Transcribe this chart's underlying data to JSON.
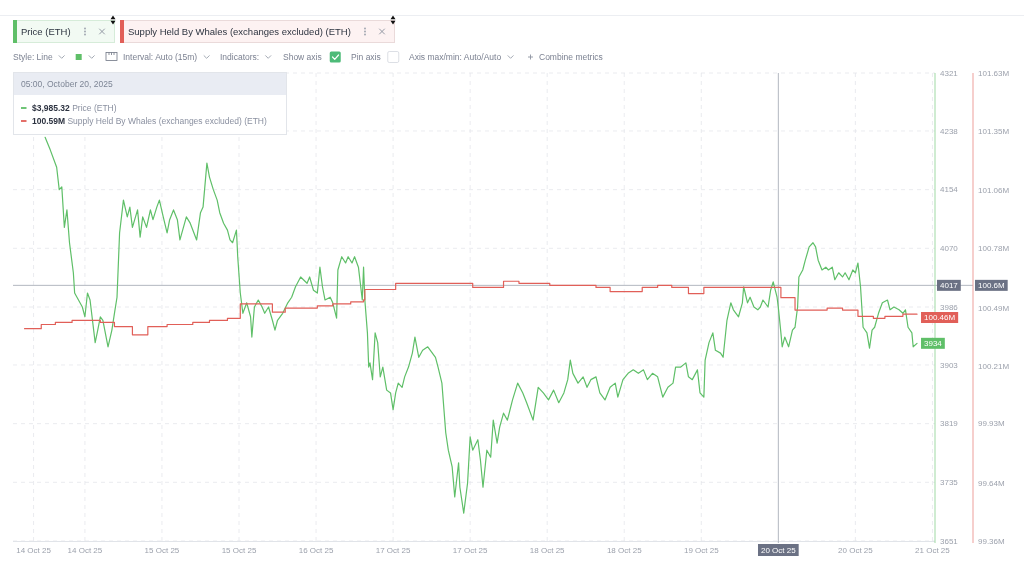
{
  "chart_data": {
    "type": "line",
    "xlim": [
      "2025-10-14T00:00",
      "2025-10-21T11:30"
    ],
    "xticks": [
      {
        "value": "2025-10-14T04:00",
        "label": "14 Oct 25"
      },
      {
        "value": "2025-10-14T14:00",
        "label": "14 Oct 25"
      },
      {
        "value": "2025-10-15T05:00",
        "label": "15 Oct 25"
      },
      {
        "value": "2025-10-15T20:00",
        "label": "15 Oct 25"
      },
      {
        "value": "2025-10-16T11:00",
        "label": "16 Oct 25"
      },
      {
        "value": "2025-10-17T02:00",
        "label": "17 Oct 25"
      },
      {
        "value": "2025-10-17T17:00",
        "label": "17 Oct 25"
      },
      {
        "value": "2025-10-18T08:00",
        "label": "18 Oct 25"
      },
      {
        "value": "2025-10-18T23:00",
        "label": "18 Oct 25"
      },
      {
        "value": "2025-10-19T14:00",
        "label": "19 Oct 25"
      },
      {
        "value": "2025-10-20T20:00",
        "label": "20 Oct 25"
      },
      {
        "value": "2025-10-21T11:00",
        "label": "21 Oct 25"
      }
    ],
    "ylim": [
      3651,
      4321
    ],
    "yticks": [
      3651,
      3735,
      3819,
      3903,
      3986,
      4070,
      4154,
      4238,
      4321
    ],
    "y2lim": [
      99.36,
      101.63
    ],
    "y2ticks": [
      {
        "value": 99.36,
        "label": "99.36M"
      },
      {
        "value": 99.64,
        "label": "99.64M"
      },
      {
        "value": 99.93,
        "label": "99.93M"
      },
      {
        "value": 100.21,
        "label": "100.21M"
      },
      {
        "value": 100.49,
        "label": "100.49M"
      },
      {
        "value": 100.78,
        "label": "100.78M"
      },
      {
        "value": 101.06,
        "label": "101.06M"
      },
      {
        "value": 101.35,
        "label": "101.35M"
      },
      {
        "value": 101.63,
        "label": "101.63M"
      }
    ],
    "grid": true,
    "legend": "top left",
    "series": [
      {
        "name": "Price (ETH)",
        "color": "#5fbf68",
        "x": [
          "2025-10-14T06:15",
          "2025-10-14T07:15",
          "2025-10-14T08:30",
          "2025-10-14T09:00",
          "2025-10-14T09:30",
          "2025-10-14T10:00",
          "2025-10-14T10:30",
          "2025-10-14T11:00",
          "2025-10-14T11:45",
          "2025-10-14T12:00",
          "2025-10-14T13:30",
          "2025-10-14T14:00",
          "2025-10-14T14:30",
          "2025-10-14T15:00",
          "2025-10-14T16:00",
          "2025-10-14T16:30",
          "2025-10-14T17:00",
          "2025-10-14T17:30",
          "2025-10-14T18:30",
          "2025-10-14T19:15",
          "2025-10-14T19:45",
          "2025-10-14T20:15",
          "2025-10-14T20:45",
          "2025-10-14T21:30",
          "2025-10-14T22:15",
          "2025-10-14T22:45",
          "2025-10-14T23:15",
          "2025-10-15T00:15",
          "2025-10-15T00:45",
          "2025-10-15T01:15",
          "2025-10-15T02:00",
          "2025-10-15T02:45",
          "2025-10-15T03:15",
          "2025-10-15T04:00",
          "2025-10-15T04:30",
          "2025-10-15T05:15",
          "2025-10-15T06:00",
          "2025-10-15T06:30",
          "2025-10-15T07:15",
          "2025-10-15T08:00",
          "2025-10-15T08:30",
          "2025-10-15T09:45",
          "2025-10-15T10:30",
          "2025-10-15T11:45",
          "2025-10-15T12:30",
          "2025-10-15T13:00",
          "2025-10-15T13:45",
          "2025-10-15T14:15",
          "2025-10-15T15:00",
          "2025-10-15T15:45",
          "2025-10-15T16:15",
          "2025-10-15T17:00",
          "2025-10-15T17:45",
          "2025-10-15T18:15",
          "2025-10-15T18:45",
          "2025-10-15T19:30",
          "2025-10-15T19:45",
          "2025-10-15T20:15",
          "2025-10-15T20:45",
          "2025-10-15T21:30",
          "2025-10-15T22:15",
          "2025-10-15T22:30",
          "2025-10-15T23:00",
          "2025-10-15T23:45",
          "2025-10-16T00:30",
          "2025-10-16T01:00",
          "2025-10-16T01:45",
          "2025-10-16T02:30",
          "2025-10-16T03:00",
          "2025-10-16T03:30",
          "2025-10-16T04:30",
          "2025-10-16T05:30",
          "2025-10-16T06:15",
          "2025-10-16T07:00",
          "2025-10-16T08:00",
          "2025-10-16T09:15",
          "2025-10-16T09:45",
          "2025-10-16T10:30",
          "2025-10-16T11:15",
          "2025-10-16T11:45",
          "2025-10-16T12:15",
          "2025-10-16T12:45",
          "2025-10-16T13:45",
          "2025-10-16T14:15",
          "2025-10-16T15:00",
          "2025-10-16T15:15",
          "2025-10-16T16:00",
          "2025-10-16T16:45",
          "2025-10-16T17:15",
          "2025-10-16T18:00",
          "2025-10-16T18:30",
          "2025-10-16T19:15",
          "2025-10-16T20:00",
          "2025-10-16T20:15",
          "2025-10-16T20:30",
          "2025-10-16T21:00",
          "2025-10-16T21:15",
          "2025-10-16T21:30",
          "2025-10-16T22:00",
          "2025-10-16T22:30",
          "2025-10-16T23:00",
          "2025-10-16T23:30",
          "2025-10-17T00:00",
          "2025-10-17T00:45",
          "2025-10-17T01:30",
          "2025-10-17T02:00",
          "2025-10-17T02:30",
          "2025-10-17T03:00",
          "2025-10-17T03:45",
          "2025-10-17T04:15",
          "2025-10-17T05:00",
          "2025-10-17T05:45",
          "2025-10-17T06:15",
          "2025-10-17T07:00",
          "2025-10-17T07:45",
          "2025-10-17T08:45",
          "2025-10-17T09:15",
          "2025-10-17T10:15",
          "2025-10-17T10:45",
          "2025-10-17T11:30",
          "2025-10-17T12:15",
          "2025-10-17T12:45",
          "2025-10-17T13:30",
          "2025-10-17T14:00",
          "2025-10-17T14:45",
          "2025-10-17T15:00",
          "2025-10-17T15:45",
          "2025-10-17T16:30",
          "2025-10-17T17:00",
          "2025-10-17T17:30",
          "2025-10-17T18:30",
          "2025-10-17T19:00",
          "2025-10-17T19:30",
          "2025-10-17T20:15",
          "2025-10-17T21:00",
          "2025-10-17T21:30",
          "2025-10-17T22:15",
          "2025-10-17T22:45",
          "2025-10-17T23:30",
          "2025-10-18T00:15",
          "2025-10-18T01:15",
          "2025-10-18T02:15",
          "2025-10-18T03:15",
          "2025-10-18T04:00",
          "2025-10-18T05:15",
          "2025-10-18T06:15",
          "2025-10-18T07:15",
          "2025-10-18T08:15",
          "2025-10-18T09:15",
          "2025-10-18T10:15",
          "2025-10-18T11:15",
          "2025-10-18T12:00",
          "2025-10-18T12:30",
          "2025-10-18T13:00",
          "2025-10-18T14:00",
          "2025-10-18T15:00",
          "2025-10-18T15:45",
          "2025-10-18T16:30",
          "2025-10-18T17:30",
          "2025-10-18T18:15",
          "2025-10-18T19:15",
          "2025-10-18T20:15",
          "2025-10-18T21:15",
          "2025-10-18T21:45",
          "2025-10-18T22:45",
          "2025-10-18T23:45",
          "2025-10-19T00:45",
          "2025-10-19T01:45",
          "2025-10-19T02:45",
          "2025-10-19T03:30",
          "2025-10-19T04:30",
          "2025-10-19T05:30",
          "2025-10-19T06:30",
          "2025-10-19T07:30",
          "2025-10-19T08:30",
          "2025-10-19T09:00",
          "2025-10-19T10:00",
          "2025-10-19T11:00",
          "2025-10-19T11:30",
          "2025-10-19T12:15",
          "2025-10-19T13:15",
          "2025-10-19T13:45",
          "2025-10-19T14:30",
          "2025-10-19T14:45",
          "2025-10-19T15:30",
          "2025-10-19T16:15",
          "2025-10-19T16:45",
          "2025-10-19T17:45",
          "2025-10-19T18:15",
          "2025-10-19T19:00",
          "2025-10-19T19:45",
          "2025-10-19T20:15",
          "2025-10-19T21:15",
          "2025-10-19T22:00",
          "2025-10-19T22:15",
          "2025-10-19T23:00",
          "2025-10-19T23:30",
          "2025-10-20T00:15",
          "2025-10-20T01:00",
          "2025-10-20T01:30",
          "2025-10-20T02:00",
          "2025-10-20T03:00",
          "2025-10-20T03:30",
          "2025-10-20T04:00",
          "2025-10-20T04:45",
          "2025-10-20T05:00",
          "2025-10-20T05:30",
          "2025-10-20T05:45",
          "2025-10-20T06:15",
          "2025-10-20T07:00",
          "2025-10-20T07:45",
          "2025-10-20T08:15",
          "2025-10-20T08:45",
          "2025-10-20T09:00",
          "2025-10-20T09:45",
          "2025-10-20T10:15",
          "2025-10-20T11:00",
          "2025-10-20T11:45",
          "2025-10-20T12:15",
          "2025-10-20T12:45",
          "2025-10-20T13:30",
          "2025-10-20T14:15",
          "2025-10-20T14:45",
          "2025-10-20T15:30",
          "2025-10-20T16:00",
          "2025-10-20T16:45",
          "2025-10-20T17:30",
          "2025-10-20T18:00",
          "2025-10-20T18:45",
          "2025-10-20T19:30",
          "2025-10-20T20:00",
          "2025-10-20T20:30",
          "2025-10-20T21:00",
          "2025-10-20T21:30",
          "2025-10-20T22:15",
          "2025-10-20T22:45",
          "2025-10-20T23:15",
          "2025-10-20T23:45",
          "2025-10-21T00:30",
          "2025-10-21T01:15",
          "2025-10-21T02:15",
          "2025-10-21T02:45",
          "2025-10-21T03:30",
          "2025-10-21T04:30",
          "2025-10-21T05:15",
          "2025-10-21T05:45",
          "2025-10-21T06:15",
          "2025-10-21T07:00",
          "2025-10-21T07:15",
          "2025-10-21T08:00"
        ],
        "values": [
          4229,
          4211,
          4186,
          4154,
          4158,
          4100,
          4125,
          4078,
          4035,
          4006,
          3986,
          3972,
          4006,
          3996,
          3935,
          3953,
          3972,
          3967,
          3929,
          3953,
          3977,
          4000,
          4092,
          4139,
          4115,
          4129,
          4100,
          4125,
          4086,
          4115,
          4100,
          4125,
          4111,
          4129,
          4139,
          4115,
          4092,
          4111,
          4125,
          4111,
          4082,
          4115,
          4106,
          4082,
          4121,
          4129,
          4192,
          4172,
          4154,
          4139,
          4121,
          4106,
          4096,
          4082,
          4078,
          4096,
          4058,
          4006,
          3977,
          3992,
          3972,
          3943,
          3986,
          3996,
          3986,
          3977,
          3986,
          3967,
          3953,
          3967,
          3977,
          3992,
          4000,
          4015,
          4029,
          4020,
          4029,
          4010,
          4006,
          4043,
          4015,
          3996,
          4000,
          3992,
          3970,
          4039,
          4058,
          4049,
          4058,
          4049,
          4058,
          4043,
          3996,
          4043,
          3996,
          3949,
          3900,
          3906,
          3882,
          3949,
          3935,
          3886,
          3900,
          3867,
          3863,
          3839,
          3863,
          3877,
          3871,
          3886,
          3900,
          3920,
          3943,
          3914,
          3924,
          3929,
          3924,
          3914,
          3900,
          3877,
          3806,
          3781,
          3757,
          3714,
          3763,
          3728,
          3691,
          3734,
          3800,
          3781,
          3796,
          3767,
          3728,
          3781,
          3771,
          3824,
          3791,
          3814,
          3834,
          3824,
          3853,
          3877,
          3863,
          3849,
          3824,
          3871,
          3863,
          3853,
          3867,
          3849,
          3863,
          3882,
          3910,
          3891,
          3877,
          3886,
          3871,
          3882,
          3886,
          3863,
          3853,
          3871,
          3877,
          3857,
          3882,
          3891,
          3896,
          3891,
          3896,
          3882,
          3891,
          3886,
          3857,
          3871,
          3877,
          3900,
          3900,
          3906,
          3886,
          3882,
          3896,
          3863,
          3857,
          3910,
          3935,
          3949,
          3924,
          3920,
          3914,
          3967,
          3992,
          3982,
          3972,
          3992,
          4015,
          3992,
          4000,
          3986,
          3982,
          3986,
          3996,
          3986,
          4010,
          4022,
          4000,
          3985.32,
          3949,
          3929,
          3943,
          3929,
          3953,
          3957,
          3986,
          4029,
          4039,
          4053,
          4072,
          4078,
          4072,
          4053,
          4039,
          4043,
          4039,
          4043,
          4025,
          4035,
          4029,
          4035,
          4025,
          4039,
          4035,
          4049,
          4015,
          3957,
          3949,
          3927,
          3953,
          3957,
          3977,
          3992,
          3996,
          3982,
          3986,
          3982,
          3977,
          3982,
          3957,
          3949,
          3929,
          3934
        ],
        "value_labels": [
          null,
          null,
          null,
          null,
          null,
          null,
          null,
          null,
          null,
          null,
          null,
          null,
          null,
          null,
          null,
          null,
          null,
          null,
          null,
          null,
          null,
          null,
          null,
          null,
          null,
          null,
          null,
          null,
          null,
          null,
          null,
          null,
          null,
          null,
          null,
          null,
          null,
          null,
          null,
          null,
          null,
          null,
          null,
          null,
          null,
          null,
          null,
          null,
          null,
          null,
          null,
          null,
          null,
          null,
          null,
          null,
          null,
          null,
          null,
          null,
          null,
          null,
          null,
          null,
          null,
          null,
          null,
          null,
          null,
          null,
          null,
          null,
          null,
          null,
          null,
          null,
          null,
          null,
          null,
          null,
          null,
          null,
          null,
          null,
          null,
          null,
          null,
          null,
          null,
          null,
          null,
          null,
          null,
          null,
          null,
          null,
          null,
          null,
          null,
          null,
          null,
          null,
          null,
          null,
          null,
          null,
          null,
          null,
          null,
          null,
          null,
          null,
          null,
          null,
          null,
          null,
          null,
          null,
          null,
          null,
          null,
          null,
          null,
          null,
          null,
          null,
          null,
          null,
          null,
          null,
          null,
          null,
          null,
          null,
          null,
          null,
          null,
          null,
          null,
          null,
          null,
          null,
          null,
          null,
          null,
          null,
          null,
          null,
          null,
          null,
          null,
          null,
          null,
          null,
          null,
          null,
          null,
          null,
          null,
          null,
          null,
          null,
          null,
          null,
          null,
          null,
          null,
          null,
          null,
          null,
          null,
          null,
          null,
          null,
          null,
          null,
          null,
          null,
          null,
          null,
          null,
          null,
          null,
          null,
          null,
          null,
          null,
          null,
          null,
          null,
          null,
          null,
          null,
          null,
          null,
          null,
          null,
          null,
          null,
          null,
          null,
          null,
          null,
          null,
          null,
          null,
          null,
          null,
          null,
          null,
          null,
          null,
          null,
          null,
          null,
          null,
          null,
          null,
          null,
          null,
          null,
          null,
          null,
          null,
          null,
          null,
          null,
          null,
          null,
          null,
          null,
          null,
          null,
          null,
          null,
          null,
          null,
          null,
          null,
          null,
          null,
          null,
          null,
          null,
          null,
          null,
          null,
          null,
          null,
          "3934"
        ]
      },
      {
        "name": "Supply Held By Whales (exchanges excluded) (ETH)",
        "type": "step",
        "axis": "y2",
        "color": "#e15f58",
        "x": [
          "2025-10-14T02:15",
          "2025-10-14T05:30",
          "2025-10-14T08:15",
          "2025-10-14T11:30",
          "2025-10-14T17:00",
          "2025-10-14T19:45",
          "2025-10-14T23:15",
          "2025-10-15T02:15",
          "2025-10-15T06:00",
          "2025-10-15T11:00",
          "2025-10-15T14:15",
          "2025-10-15T17:45",
          "2025-10-15T20:15",
          "2025-10-16T02:30",
          "2025-10-16T05:00",
          "2025-10-16T11:15",
          "2025-10-16T14:15",
          "2025-10-16T17:45",
          "2025-10-16T20:15",
          "2025-10-16T20:30",
          "2025-10-17T02:30",
          "2025-10-17T17:30",
          "2025-10-17T23:30",
          "2025-10-18T02:30",
          "2025-10-18T08:30",
          "2025-10-18T17:30",
          "2025-10-18T20:15",
          "2025-10-19T02:30",
          "2025-10-19T05:30",
          "2025-10-19T08:15",
          "2025-10-19T11:30",
          "2025-10-19T14:30",
          "2025-10-20T05:30",
          "2025-10-20T08:15",
          "2025-10-20T14:30",
          "2025-10-20T17:30",
          "2025-10-20T20:30",
          "2025-10-20T23:30",
          "2025-10-21T01:45",
          "2025-10-21T05:15",
          "2025-10-21T08:00"
        ],
        "values": [
          100.39,
          100.41,
          100.42,
          100.43,
          100.42,
          100.4,
          100.36,
          100.4,
          100.41,
          100.42,
          100.43,
          100.44,
          100.51,
          100.47,
          100.49,
          100.5,
          100.51,
          100.52,
          100.53,
          100.58,
          100.61,
          100.59,
          100.62,
          100.61,
          100.6,
          100.59,
          100.57,
          100.59,
          100.6,
          100.59,
          100.56,
          100.59,
          100.54,
          100.48,
          100.49,
          100.48,
          100.45,
          100.44,
          100.45,
          100.46,
          100.46
        ],
        "value_labels": [
          null,
          null,
          null,
          null,
          null,
          null,
          null,
          null,
          null,
          null,
          null,
          null,
          null,
          null,
          null,
          null,
          null,
          null,
          null,
          null,
          null,
          null,
          null,
          null,
          null,
          null,
          null,
          null,
          null,
          null,
          null,
          null,
          null,
          null,
          null,
          null,
          null,
          null,
          null,
          null,
          "100.46M"
        ]
      }
    ],
    "ref_lines": [
      {
        "axis": "x",
        "value": "2025-10-20T05:00",
        "label": "20 Oct 25",
        "color": "#b3b7c0"
      },
      {
        "axis": "y",
        "value": 4017,
        "label": "4017",
        "color": "#b3b7c0"
      },
      {
        "axis": "y2",
        "value": 100.6,
        "label": "100.6M",
        "color": "#b3b7c0"
      }
    ],
    "annotations": [
      "Style: Line",
      "Interval: Auto (15m)",
      "Indicators:",
      "Show axis",
      "Pin axis",
      "Axis max/min: Auto/Auto",
      "Combine metrics",
      "05:00, October 20, 2025",
      "$3,985.32 Price (ETH)",
      "100.59M Supply Held By Whales (exchanges excluded) (ETH)"
    ]
  }
}
